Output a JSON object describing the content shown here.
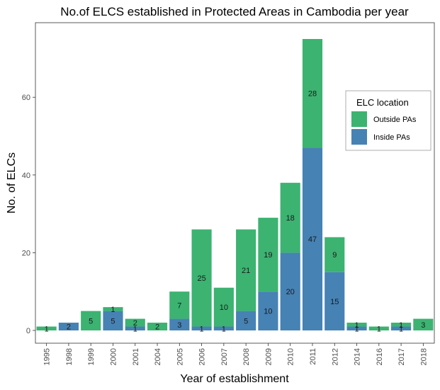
{
  "chart_data": {
    "type": "bar",
    "stacked": true,
    "title": "No.of ELCS established in Protected Areas in Cambodia per year",
    "xlabel": "Year of establishment",
    "ylabel": "No. of ELCs",
    "categories": [
      "1995",
      "1998",
      "1999",
      "2000",
      "2001",
      "2004",
      "2005",
      "2006",
      "2007",
      "2008",
      "2009",
      "2010",
      "2011",
      "2012",
      "2014",
      "2016",
      "2017",
      "2018"
    ],
    "series": [
      {
        "name": "Inside PAs",
        "color": "#4682b4",
        "values": [
          0,
          2,
          0,
          5,
          1,
          0,
          3,
          1,
          1,
          5,
          10,
          20,
          47,
          15,
          1,
          0,
          1,
          0
        ]
      },
      {
        "name": "Outside PAs",
        "color": "#3cb371",
        "values": [
          1,
          0,
          5,
          1,
          2,
          2,
          7,
          25,
          10,
          21,
          19,
          18,
          28,
          9,
          1,
          1,
          1,
          3
        ]
      }
    ],
    "ylim": [
      -3.75,
      78.75
    ],
    "yticks": [
      0,
      20,
      40,
      60
    ],
    "grid": false,
    "legend": {
      "title": "ELC location",
      "position": "right-inside",
      "order": [
        "Outside PAs",
        "Inside PAs"
      ]
    },
    "panel_border": true
  }
}
